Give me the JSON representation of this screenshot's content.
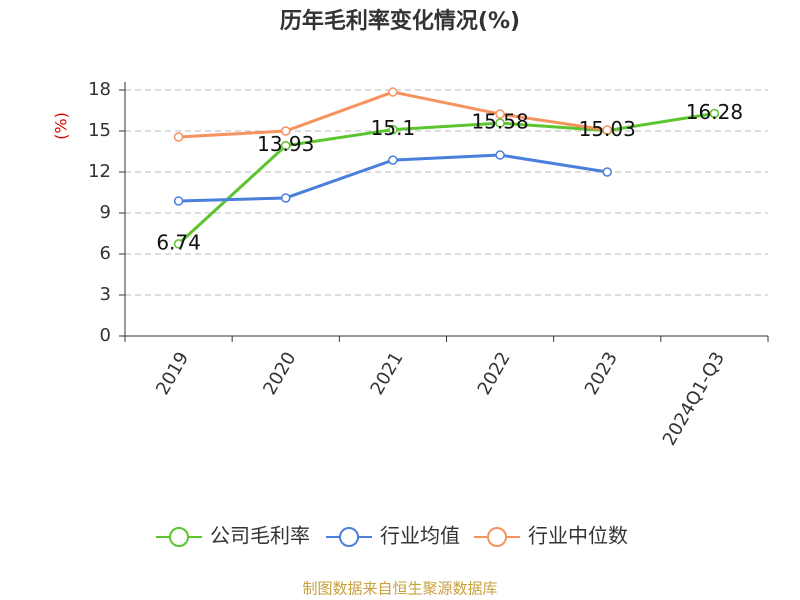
{
  "chart_data": {
    "type": "line",
    "title": "历年毛利率变化情况(%)",
    "y_label": "(%)",
    "categories": [
      "2019",
      "2020",
      "2021",
      "2022",
      "2023",
      "2024Q1-Q3"
    ],
    "series": [
      {
        "name": "公司毛利率",
        "color": "#5cc42e",
        "values": [
          6.74,
          13.93,
          15.1,
          15.58,
          15.03,
          16.28
        ],
        "show_labels": true
      },
      {
        "name": "行业均值",
        "color": "#4a7fdc",
        "values": [
          9.88,
          10.1,
          12.87,
          13.24,
          12.0,
          null
        ]
      },
      {
        "name": "行业中位数",
        "color": "#f5925e",
        "values": [
          14.56,
          15.0,
          17.85,
          16.24,
          15.07,
          null
        ]
      }
    ],
    "ylim": [
      0,
      18
    ],
    "yticks": [
      0,
      3,
      6,
      9,
      12,
      15,
      18
    ],
    "grid": true,
    "source": "制图数据来自恒生聚源数据库"
  }
}
